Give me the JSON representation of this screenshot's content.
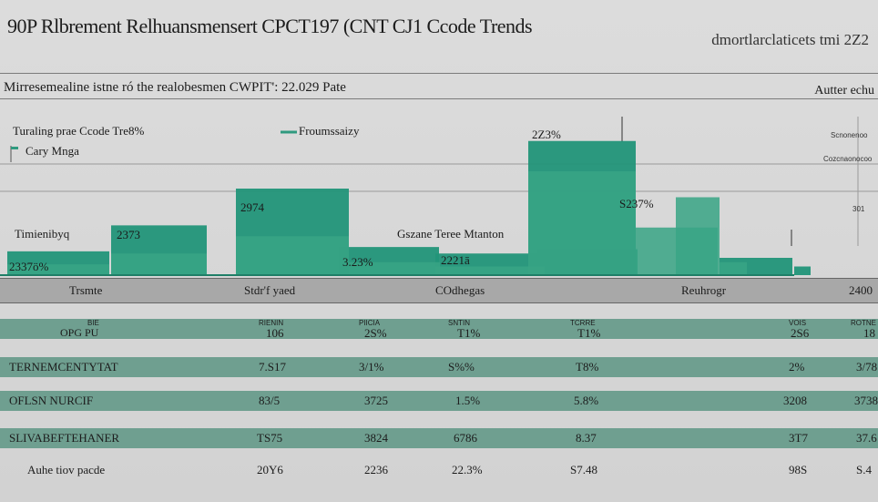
{
  "header": {
    "title": "90P Rlbrement Relhuansmensert CPCT197 (CNT CJ1 Ccode Trends",
    "right_text": "dmortlarclaticets tmi 2Z2"
  },
  "chart_data": {
    "type": "bar",
    "title": "Mirresemealine istne ró the realobesmen CWPIT': 22.029 Pate",
    "right_caption": "Autter echu",
    "annotations": [
      "Turaling prae Ccode Tre8%",
      "Cary Mnga",
      "Froumssaizy",
      "Timienibyq",
      "Gszane Teree Mtanton",
      "Scnonenoo",
      "Cozcnaonocoo",
      "301"
    ],
    "bar_labels": [
      "2337ö%",
      "2373",
      "2974",
      "3.23%",
      "2221ā",
      "2Z3%",
      "S237%"
    ],
    "series": [
      {
        "values": [
          11,
          23,
          40,
          13,
          10,
          12,
          62,
          8,
          4
        ]
      },
      {
        "values": [
          5,
          10,
          18,
          6,
          4,
          22,
          48,
          36,
          6
        ]
      }
    ],
    "ylim": [
      0,
      80
    ]
  },
  "table": {
    "headers": [
      "Trsmte",
      "Stdr'f yaed",
      "COdhegas",
      "Reuhrogr",
      "2400"
    ],
    "subheaders": [
      "OPG PU",
      "BIE",
      "RIENIN",
      "PIICIA",
      "SNTIN",
      "TCRRE",
      "VOIS",
      "ROTNE"
    ],
    "subheader_values": [
      "106",
      "2S%",
      "T1%",
      "T1%",
      "2S6",
      "18"
    ],
    "rows": [
      {
        "label": "TERNEMCENTYTAT",
        "values": [
          "7.S17",
          "3/1%",
          "S%%",
          "T8%",
          "2%",
          "3/78"
        ]
      },
      {
        "label": "OFLSN NURCIF",
        "values": [
          "83/5",
          "3725",
          "1.5%",
          "5.8%",
          "3208",
          "3738"
        ]
      },
      {
        "label": "SLIVABEFTEHANER",
        "values": [
          "TS75",
          "3824",
          "6786",
          "8.37",
          "3T7",
          "37.6"
        ]
      },
      {
        "label": "Auhe tiov pacde",
        "values": [
          "20Y6",
          "2236",
          "22.3%",
          "S7.48",
          "98S",
          "S.4"
        ]
      }
    ]
  }
}
